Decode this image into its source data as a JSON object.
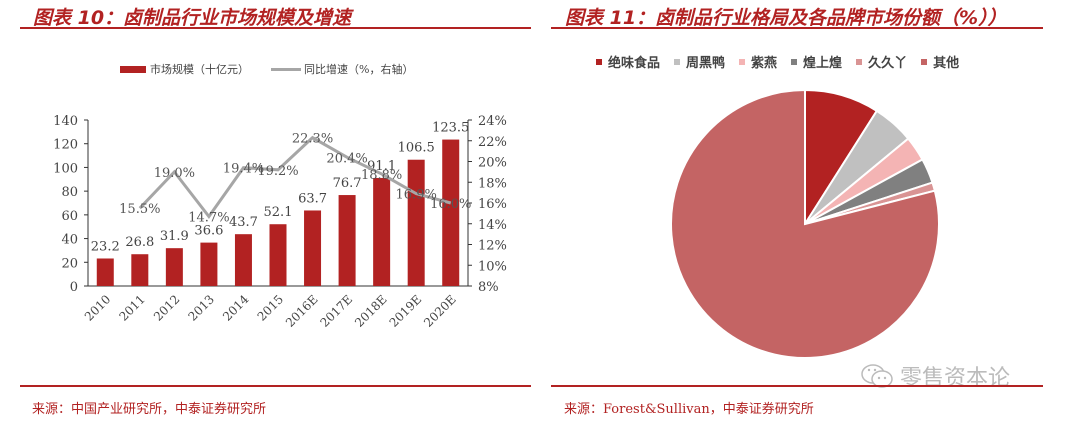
{
  "left": {
    "title": "图表 10：卤制品行业市场规模及增速",
    "source": "来源：中国产业研究所，中泰证券研究所",
    "legend": {
      "bar_label": "市场规模（十亿元）",
      "line_label": "同比增速（%，右轴）"
    }
  },
  "right": {
    "title": "图表 11：卤制品行业格局及各品牌市场份额（%））",
    "source": "来源：Forest&Sullivan，中泰证券研究所",
    "watermark": "零售资本论"
  },
  "colors": {
    "accent": "#b22222",
    "bar": "#b22222",
    "line": "#a6a6a6"
  },
  "chart_data": [
    {
      "type": "bar",
      "title": "图表 10：卤制品行业市场规模及增速",
      "categories": [
        "2010",
        "2011",
        "2012",
        "2013",
        "2014",
        "2015",
        "2016E",
        "2017E",
        "2018E",
        "2019E",
        "2020E"
      ],
      "series": [
        {
          "name": "市场规模（十亿元）",
          "type": "bar",
          "axis": "left",
          "values": [
            23.2,
            26.8,
            31.9,
            36.6,
            43.7,
            52.1,
            63.7,
            76.7,
            91.1,
            106.5,
            123.5
          ]
        },
        {
          "name": "同比增速（%，右轴）",
          "type": "line",
          "axis": "right",
          "values": [
            null,
            15.5,
            19.0,
            14.7,
            19.4,
            19.2,
            22.3,
            20.4,
            18.8,
            16.9,
            16.0
          ]
        }
      ],
      "yaxis_left": {
        "ylim": [
          0,
          140
        ],
        "ticks": [
          0,
          20,
          40,
          60,
          80,
          100,
          120,
          140
        ]
      },
      "yaxis_right": {
        "ylim": [
          8,
          24
        ],
        "ticks": [
          "8%",
          "10%",
          "12%",
          "14%",
          "16%",
          "18%",
          "20%",
          "22%",
          "24%"
        ]
      },
      "bar_labels": [
        "23.2",
        "26.8",
        "31.9",
        "36.6",
        "43.7",
        "52.1",
        "63.7",
        "76.7",
        "91.1",
        "106.5",
        "123.5"
      ],
      "line_labels": [
        "",
        "15.5%",
        "19.0%",
        "14.7%",
        "19.4%",
        "19.2%",
        "22.3%",
        "20.4%",
        "18.8%",
        "16.9%",
        "16.0%"
      ],
      "legend_position": "top",
      "grid": false
    },
    {
      "type": "pie",
      "title": "图表 11：卤制品行业格局及各品牌市场份额（%））",
      "categories": [
        "绝味食品",
        "周黑鸭",
        "紫燕",
        "煌上煌",
        "久久丫",
        "其他"
      ],
      "values": [
        9,
        5,
        3,
        3,
        1,
        79
      ],
      "colors": [
        "#b22222",
        "#c0c0c0",
        "#f4b4b4",
        "#808080",
        "#d99494",
        "#c46464"
      ],
      "legend_position": "top"
    }
  ]
}
